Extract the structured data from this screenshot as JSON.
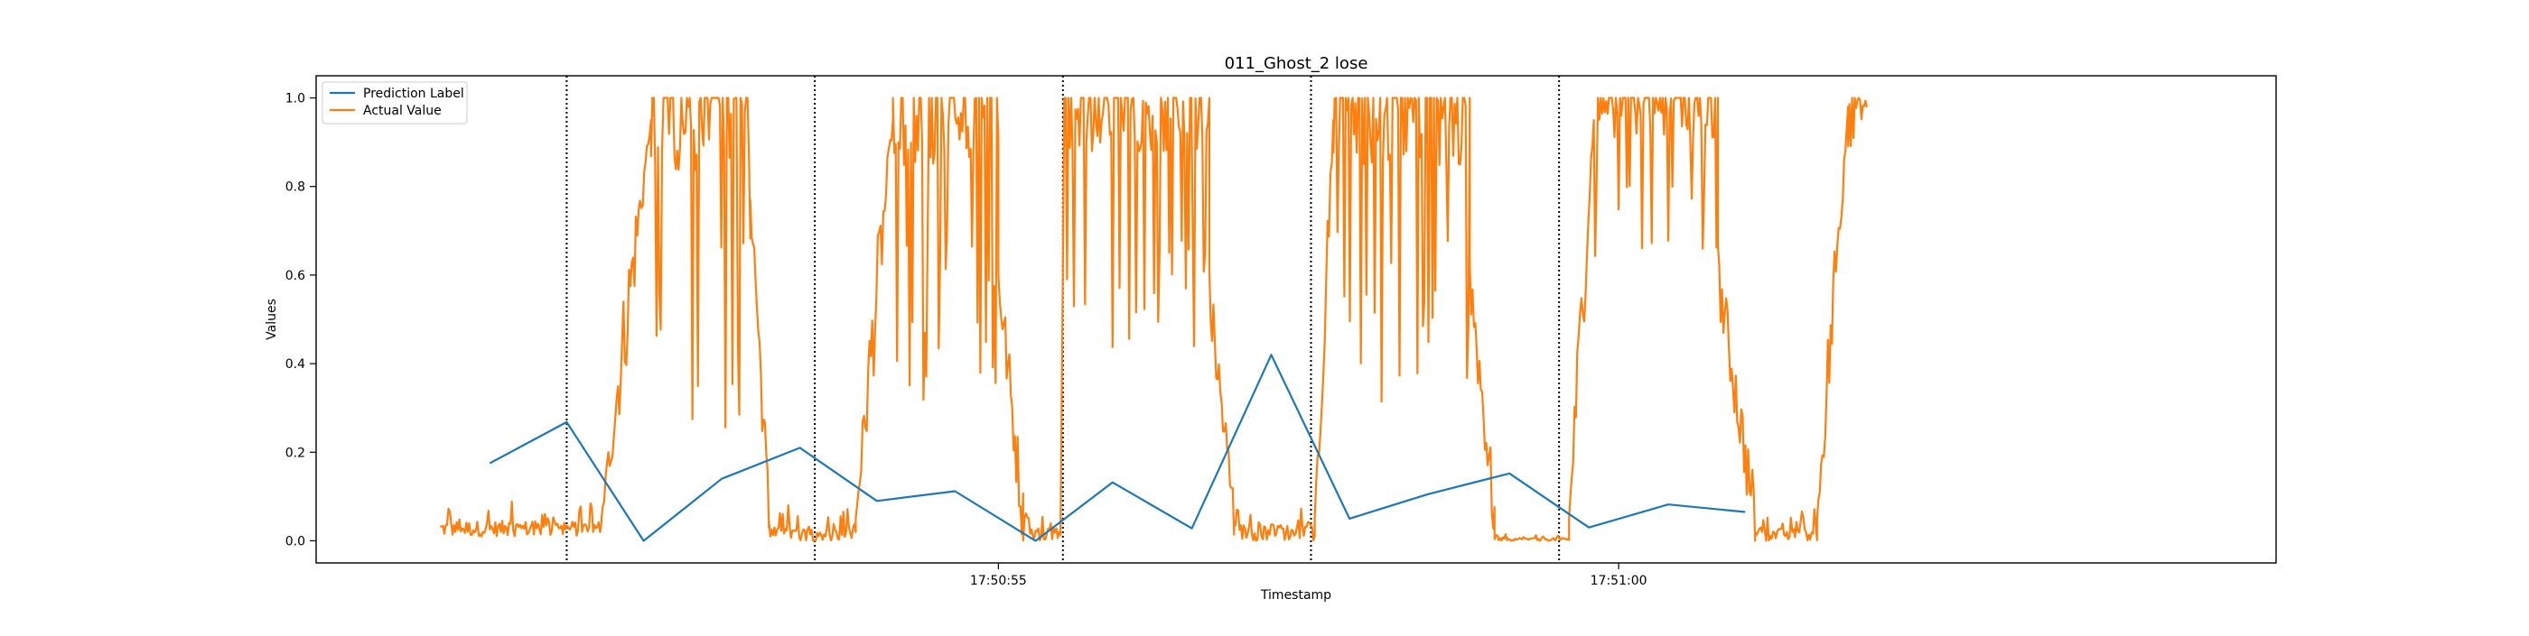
{
  "chart_data": {
    "type": "line",
    "title": "011_Ghost_2 lose",
    "xlabel": "Timestamp",
    "ylabel": "Values",
    "x_unit": "seconds (time of day, tick labels HH:MM:SS)",
    "xlim": [
      "17:50:49.5",
      "17:51:05.3"
    ],
    "ylim": [
      -0.05,
      1.05
    ],
    "y_ticks": [
      0.0,
      0.2,
      0.4,
      0.6,
      0.8,
      1.0
    ],
    "y_tick_labels": [
      "0.0",
      "0.2",
      "0.4",
      "0.6",
      "0.8",
      "1.0"
    ],
    "x_ticks": [
      "17:50:55",
      "17:51:00"
    ],
    "grid": false,
    "legend": "upper-left",
    "vertical_markers": [
      "17:50:51.52",
      "17:50:53.52",
      "17:50:55.52",
      "17:50:57.52",
      "17:50:59.52"
    ],
    "vertical_marker_style": "dotted black",
    "series": [
      {
        "name": "Prediction Label",
        "color": "#1f77b4",
        "x": [
          "17:50:50.90",
          "17:50:51.52",
          "17:50:52.14",
          "17:50:52.77",
          "17:50:53.40",
          "17:50:54.02",
          "17:50:54.65",
          "17:50:55.30",
          "17:50:55.92",
          "17:50:56.56",
          "17:50:57.20",
          "17:50:57.83",
          "17:50:58.46",
          "17:50:59.12",
          "17:50:59.76",
          "17:51:00.40",
          "17:51:01.02"
        ],
        "y": [
          0.175,
          0.268,
          0.0,
          0.14,
          0.21,
          0.09,
          0.112,
          0.0,
          0.132,
          0.028,
          0.42,
          0.05,
          0.105,
          0.152,
          0.03,
          0.082,
          0.065
        ]
      },
      {
        "name": "Actual Value",
        "color": "#ff7f0e",
        "description": "noisy sensor trace: low (~0.0-0.1) outside windows, saturating near 0.8-1.0 with deep dips inside high windows",
        "segments": [
          {
            "state": "low",
            "x": [
              "17:50:50.50",
              "17:50:51.80"
            ],
            "y_range": [
              0.01,
              0.11
            ]
          },
          {
            "state": "rise",
            "x": [
              "17:50:51.80",
              "17:50:52.20"
            ],
            "y_range": [
              0.05,
              0.95
            ]
          },
          {
            "state": "high",
            "x": [
              "17:50:52.20",
              "17:50:53.00"
            ],
            "y_range": [
              0.25,
              1.0
            ]
          },
          {
            "state": "fall",
            "x": [
              "17:50:53.00",
              "17:50:53.15"
            ],
            "y_range": [
              0.05,
              0.8
            ]
          },
          {
            "state": "low",
            "x": [
              "17:50:53.15",
              "17:50:53.85"
            ],
            "y_range": [
              0.0,
              0.09
            ]
          },
          {
            "state": "rise",
            "x": [
              "17:50:53.85",
              "17:50:54.15"
            ],
            "y_range": [
              0.05,
              0.95
            ]
          },
          {
            "state": "high",
            "x": [
              "17:50:54.15",
              "17:50:55.00"
            ],
            "y_range": [
              0.28,
              1.0
            ]
          },
          {
            "state": "fall",
            "x": [
              "17:50:55.00",
              "17:50:55.20"
            ],
            "y_range": [
              0.05,
              0.6
            ]
          },
          {
            "state": "low",
            "x": [
              "17:50:55.20",
              "17:50:55.50"
            ],
            "y_range": [
              0.0,
              0.09
            ]
          },
          {
            "state": "high",
            "x": [
              "17:50:55.52",
              "17:50:56.70"
            ],
            "y_range": [
              0.43,
              1.0
            ]
          },
          {
            "state": "fall",
            "x": [
              "17:50:56.70",
              "17:50:56.90"
            ],
            "y_range": [
              0.05,
              0.55
            ]
          },
          {
            "state": "low",
            "x": [
              "17:50:56.90",
              "17:50:57.55"
            ],
            "y_range": [
              0.0,
              0.11
            ]
          },
          {
            "state": "rise",
            "x": [
              "17:50:57.55",
              "17:50:57.70"
            ],
            "y_range": [
              0.05,
              0.95
            ]
          },
          {
            "state": "high",
            "x": [
              "17:50:57.70",
              "17:50:58.80"
            ],
            "y_range": [
              0.3,
              1.0
            ]
          },
          {
            "state": "fall",
            "x": [
              "17:50:58.80",
              "17:50:59.00"
            ],
            "y_range": [
              0.05,
              0.6
            ]
          },
          {
            "state": "low",
            "x": [
              "17:50:59.00",
              "17:50:59.60"
            ],
            "y_range": [
              0.0,
              0.02
            ]
          },
          {
            "state": "rise",
            "x": [
              "17:50:59.60",
              "17:50:59.80"
            ],
            "y_range": [
              0.05,
              0.95
            ]
          },
          {
            "state": "high",
            "x": [
              "17:50:59.80",
              "17:51:00.80"
            ],
            "y_range": [
              0.58,
              1.0
            ]
          },
          {
            "state": "fall",
            "x": [
              "17:51:00.80",
              "17:51:01.10"
            ],
            "y_range": [
              0.05,
              0.6
            ]
          },
          {
            "state": "low",
            "x": [
              "17:51:01.10",
              "17:51:01.60"
            ],
            "y_range": [
              0.0,
              0.08
            ]
          },
          {
            "state": "rise",
            "x": [
              "17:51:01.60",
              "17:51:01.85"
            ],
            "y_range": [
              0.05,
              0.98
            ]
          },
          {
            "state": "high",
            "x": [
              "17:51:01.85",
              "17:51:02.00"
            ],
            "y_range": [
              0.89,
              1.0
            ]
          }
        ]
      }
    ]
  }
}
